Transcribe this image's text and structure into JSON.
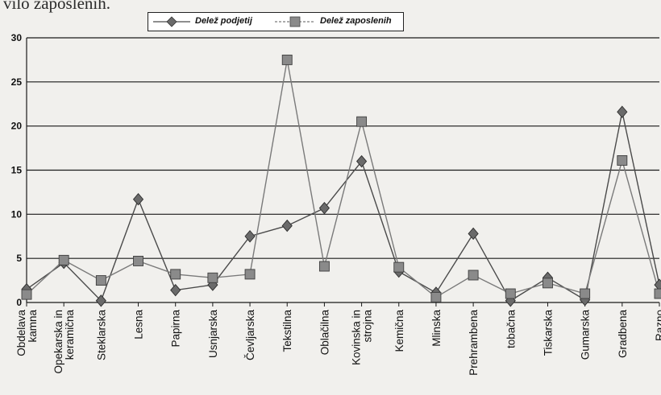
{
  "header_fragment": "vilo zaposlenih.",
  "chart_data": {
    "type": "line",
    "categories": [
      "Obdelava kamna",
      "Opekarska in keramična",
      "Steklarska",
      "Lesna",
      "Papirna",
      "Usnjarska",
      "Čevljarska",
      "Tekstilna",
      "Oblačilna",
      "Kovinska in strojna",
      "Kemična",
      "Mlinska",
      "Prehrambena",
      "tobačna",
      "Tiskarska",
      "Gumarska",
      "Gradbena",
      "Razno"
    ],
    "series": [
      {
        "name": "Delež podjetij",
        "marker": "diamond",
        "color": "#4a4a4a",
        "values": [
          1.5,
          4.5,
          0.2,
          11.7,
          1.4,
          2.0,
          7.5,
          8.7,
          10.7,
          16.0,
          3.5,
          1.1,
          7.8,
          0.2,
          2.8,
          0.3,
          21.6,
          2.0
        ]
      },
      {
        "name": "Delež zaposlenih",
        "marker": "square",
        "color": "#7a7a7a",
        "values": [
          0.9,
          4.8,
          2.5,
          4.7,
          3.2,
          2.8,
          3.2,
          27.5,
          4.1,
          20.5,
          4.0,
          0.6,
          3.1,
          1.0,
          2.2,
          1.0,
          16.1,
          1.0
        ]
      }
    ],
    "yticks": [
      0,
      5,
      10,
      15,
      20,
      25,
      30
    ],
    "ylim": [
      0,
      30
    ],
    "grid": true,
    "legend_position": "top-center"
  }
}
